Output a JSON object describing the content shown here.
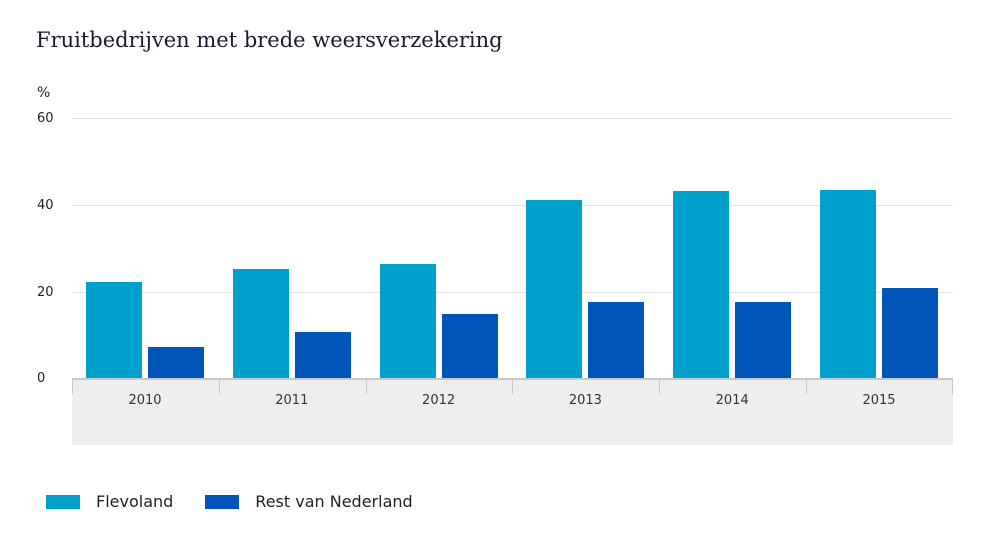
{
  "title": "Fruitbedrijven met brede weersverzekering",
  "unit": "%",
  "colors": {
    "flevoland": "#00a0cc",
    "rest": "#0056b8"
  },
  "yticks": [
    "60",
    "40",
    "20",
    "0"
  ],
  "legend": [
    "Flevoland",
    "Rest van Nederland"
  ],
  "chart_data": {
    "type": "bar",
    "title": "Fruitbedrijven met brede weersverzekering",
    "xlabel": "",
    "ylabel": "%",
    "ylim": [
      0,
      60
    ],
    "yticks": [
      0,
      20,
      40,
      60
    ],
    "grid": true,
    "legend_position": "bottom",
    "categories": [
      "2010",
      "2011",
      "2012",
      "2013",
      "2014",
      "2015"
    ],
    "series": [
      {
        "name": "Flevoland",
        "color": "#00a0cc",
        "values": [
          22.2,
          25.2,
          26.4,
          41.2,
          43.3,
          43.5
        ]
      },
      {
        "name": "Rest van Nederland",
        "color": "#0056b8",
        "values": [
          7.2,
          10.6,
          14.8,
          17.6,
          17.6,
          20.8
        ]
      }
    ]
  }
}
